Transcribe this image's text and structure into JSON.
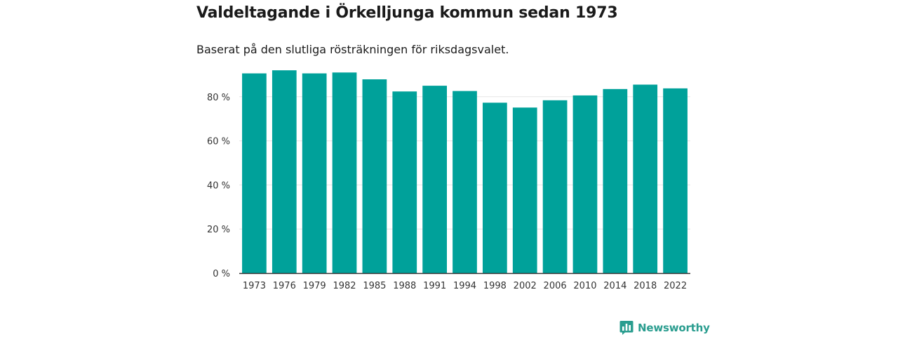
{
  "header": {
    "title": "Valdeltagande i Örkelljunga kommun sedan 1973",
    "subtitle": "Baserat på den slutliga rösträkningen för riksdagsvalet."
  },
  "colors": {
    "bar": "#00a19a",
    "brand": "#2a9d8f",
    "axis": "#333333",
    "grid": "#e6e6e6"
  },
  "brand": {
    "name": "Newsworthy",
    "icon": "bar-chart-logo-icon"
  },
  "chart_data": {
    "type": "bar",
    "title": "Valdeltagande i Örkelljunga kommun sedan 1973",
    "subtitle": "Baserat på den slutliga rösträkningen för riksdagsvalet.",
    "xlabel": "",
    "ylabel": "",
    "ylim": [
      0,
      100
    ],
    "yticks": [
      0,
      20,
      40,
      60,
      80
    ],
    "ytick_labels": [
      "0 %",
      "20 %",
      "40 %",
      "60 %",
      "80 %"
    ],
    "grid": true,
    "categories": [
      "1973",
      "1976",
      "1979",
      "1982",
      "1985",
      "1988",
      "1991",
      "1994",
      "1998",
      "2002",
      "2006",
      "2010",
      "2014",
      "2018",
      "2022"
    ],
    "values": [
      90.6,
      92.0,
      90.6,
      91.0,
      87.9,
      82.4,
      85.0,
      82.6,
      77.3,
      75.1,
      78.4,
      80.6,
      83.5,
      85.5,
      83.8
    ]
  }
}
